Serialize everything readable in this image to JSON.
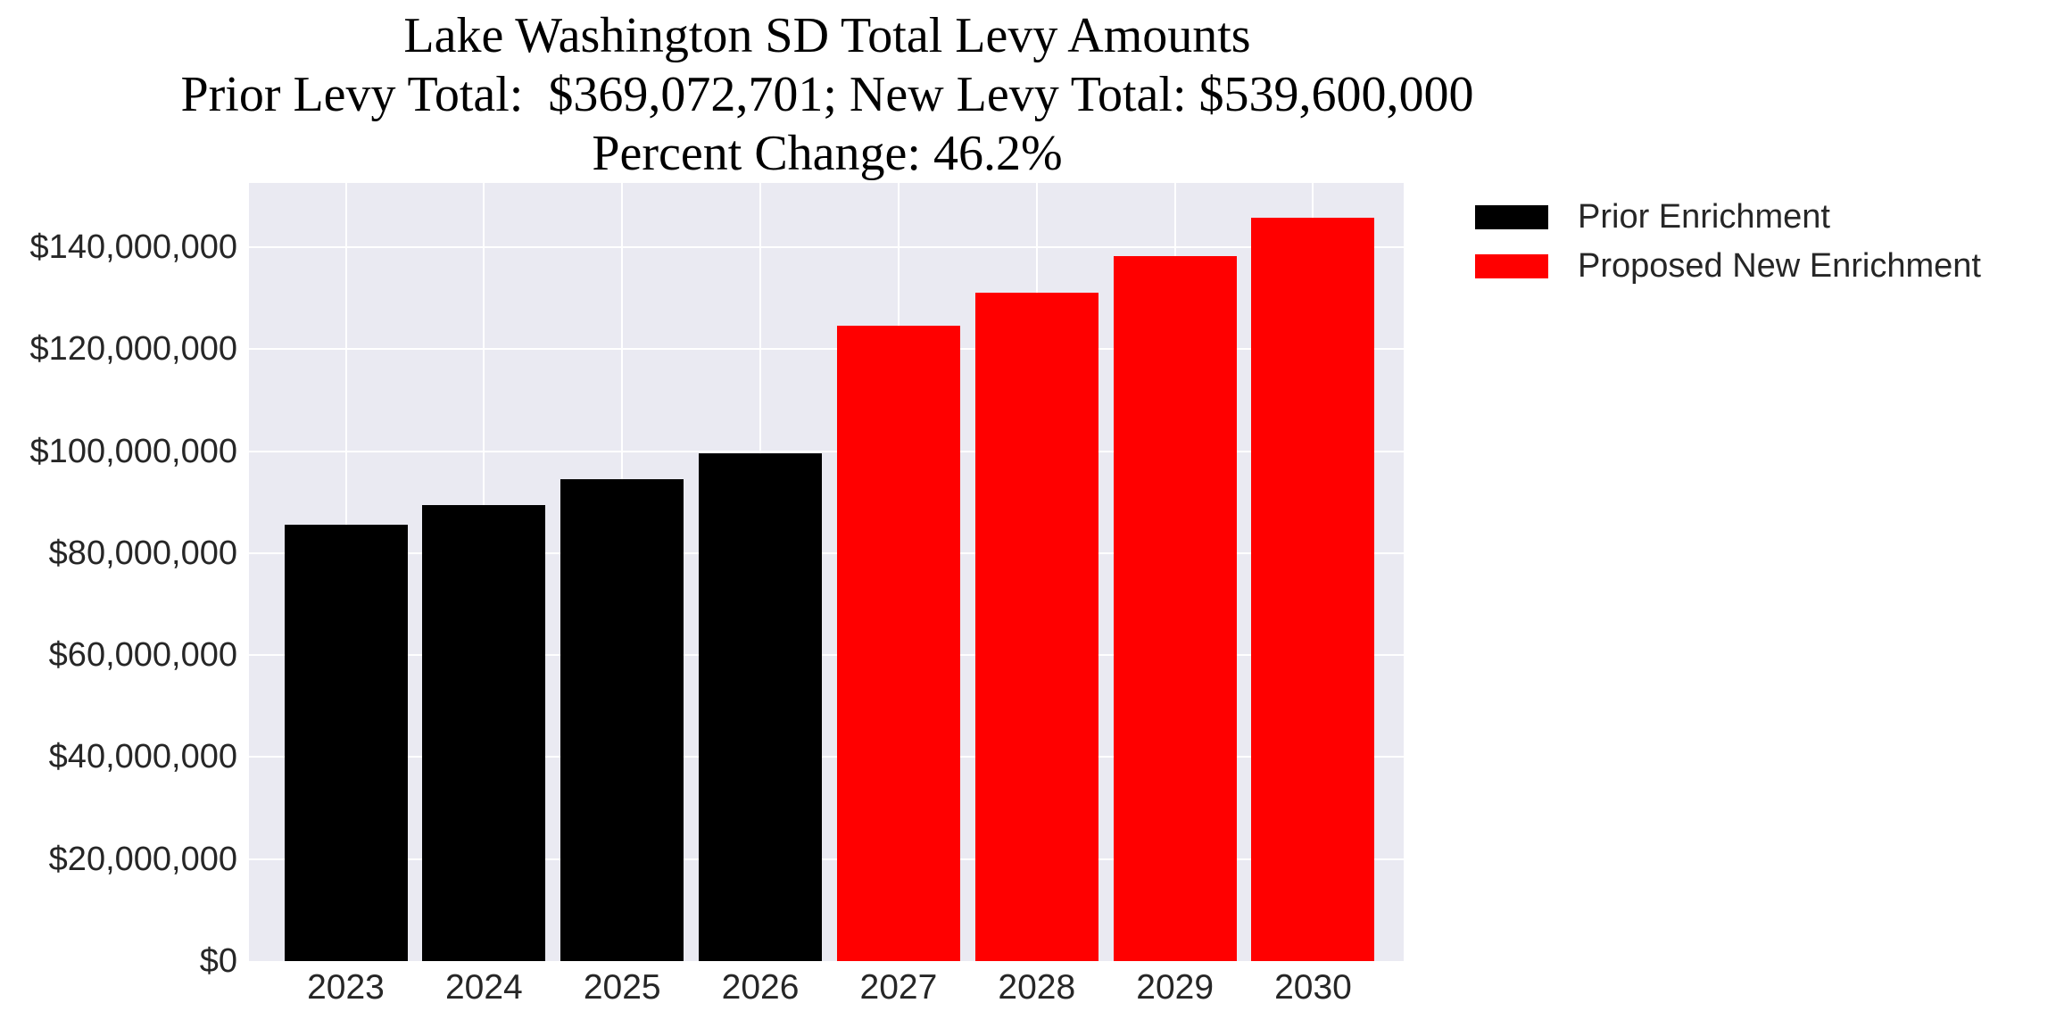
{
  "title": {
    "line1": "Lake Washington SD Total Levy Amounts",
    "line2": "Prior Levy Total:  $369,072,701; New Levy Total: $539,600,000",
    "line3": "Percent Change: 46.2%"
  },
  "legend": {
    "items": [
      {
        "label": "Prior Enrichment",
        "color": "#000000"
      },
      {
        "label": "Proposed New Enrichment",
        "color": "#ff0000"
      }
    ],
    "position": "outside-upper-right"
  },
  "colors": {
    "figure_background": "#ffffff",
    "plot_background": "#eaeaf2",
    "gridline": "#ffffff",
    "tick_text": "#262626",
    "title_text": "#000000",
    "prior_bar": "#000000",
    "new_bar": "#ff0000"
  },
  "chart_data": {
    "type": "bar",
    "title": "Lake Washington SD Total Levy Amounts",
    "subtitle_line2": "Prior Levy Total:  $369,072,701; New Levy Total: $539,600,000",
    "subtitle_line3": "Percent Change: 46.2%",
    "prior_levy_total": 369072701,
    "new_levy_total": 539600000,
    "percent_change": "46.2%",
    "categories": [
      "2023",
      "2024",
      "2025",
      "2026",
      "2027",
      "2028",
      "2029",
      "2030"
    ],
    "series": [
      {
        "name": "Prior Enrichment",
        "color": "#000000",
        "values": [
          85572701,
          89500000,
          94500000,
          99500000,
          null,
          null,
          null,
          null
        ]
      },
      {
        "name": "Proposed New Enrichment",
        "color": "#ff0000",
        "values": [
          null,
          null,
          null,
          null,
          124600000,
          131100000,
          138200000,
          145700000
        ]
      }
    ],
    "xlabel": "",
    "ylabel": "",
    "ylim": [
      0,
      152600000
    ],
    "yticks": [
      0,
      20000000,
      40000000,
      60000000,
      80000000,
      100000000,
      120000000,
      140000000
    ],
    "ytick_labels": [
      "$0",
      "$20,000,000",
      "$40,000,000",
      "$60,000,000",
      "$80,000,000",
      "$100,000,000",
      "$120,000,000",
      "$140,000,000"
    ],
    "grid": true,
    "legend_position": "upper right outside axes"
  }
}
